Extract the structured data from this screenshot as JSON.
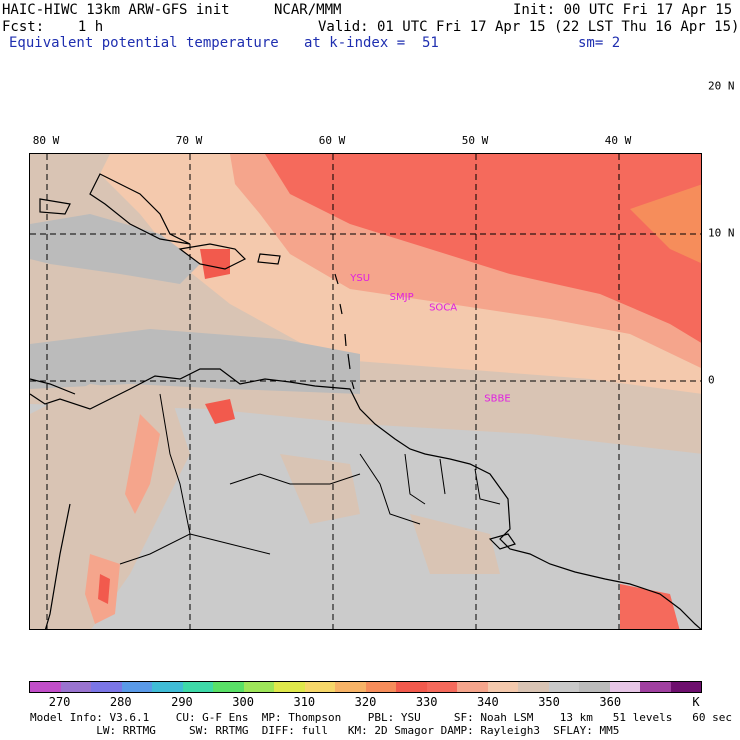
{
  "header": {
    "model": "HAIC-HIWC 13km ARW-GFS init",
    "center": "NCAR/MMM",
    "init": "Init: 00 UTC Fri 17 Apr 15",
    "fcst": "Fcst:    1 h",
    "valid": "Valid: 01 UTC Fri 17 Apr 15 (22 LST Thu 16 Apr 15)",
    "field": "Equivalent potential temperature",
    "level": "at k-index =  51",
    "smooth": "sm= 2"
  },
  "map": {
    "lon_labels": [
      {
        "text": "80 W",
        "lon": -80
      },
      {
        "text": "70 W",
        "lon": -70
      },
      {
        "text": "60 W",
        "lon": -60
      },
      {
        "text": "50 W",
        "lon": -50
      },
      {
        "text": "40 W",
        "lon": -40
      }
    ],
    "lat_labels": [
      {
        "text": "20 N",
        "lat": 20
      },
      {
        "text": "10 N",
        "lat": 10
      },
      {
        "text": "0",
        "lat": 0
      }
    ],
    "stations": [
      {
        "text": "YSU",
        "lon": -58.1,
        "lat": 6.8
      },
      {
        "text": "SMJP",
        "lon": -55.2,
        "lat": 5.5
      },
      {
        "text": "SOCA",
        "lon": -52.3,
        "lat": 4.8
      },
      {
        "text": "SBBE",
        "lon": -48.5,
        "lat": -1.4
      }
    ]
  },
  "colorbar": {
    "colors": [
      "#c24ec9",
      "#9a74d0",
      "#7b76e6",
      "#5a9ae8",
      "#40bcd6",
      "#3ed9a8",
      "#59e067",
      "#9ee55a",
      "#dfe84c",
      "#f6d76a",
      "#f7b367",
      "#f68d5b",
      "#f25a4d",
      "#f56a5c",
      "#f5a58c",
      "#f4c9ad",
      "#d9c4b4",
      "#c9c9c9",
      "#bbbbbb",
      "#e6c6e6",
      "#a040a0",
      "#6e0f6e"
    ],
    "labels": [
      {
        "text": "270",
        "index": 1
      },
      {
        "text": "280",
        "index": 3
      },
      {
        "text": "290",
        "index": 5
      },
      {
        "text": "300",
        "index": 7
      },
      {
        "text": "310",
        "index": 9
      },
      {
        "text": "320",
        "index": 11
      },
      {
        "text": "330",
        "index": 13
      },
      {
        "text": "340",
        "index": 15
      },
      {
        "text": "350",
        "index": 17
      },
      {
        "text": "360",
        "index": 19
      },
      {
        "text": "K",
        "index": 22
      }
    ]
  },
  "footer": {
    "line1": "Model Info: V3.6.1    CU: G-F Ens  MP: Thompson    PBL: YSU     SF: Noah LSM    13 km   51 levels   60 sec",
    "line2": "          LW: RRTMG     SW: RRTMG  DIFF: full   KM: 2D Smagor DAMP: Rayleigh3  SFLAY: MM5"
  }
}
